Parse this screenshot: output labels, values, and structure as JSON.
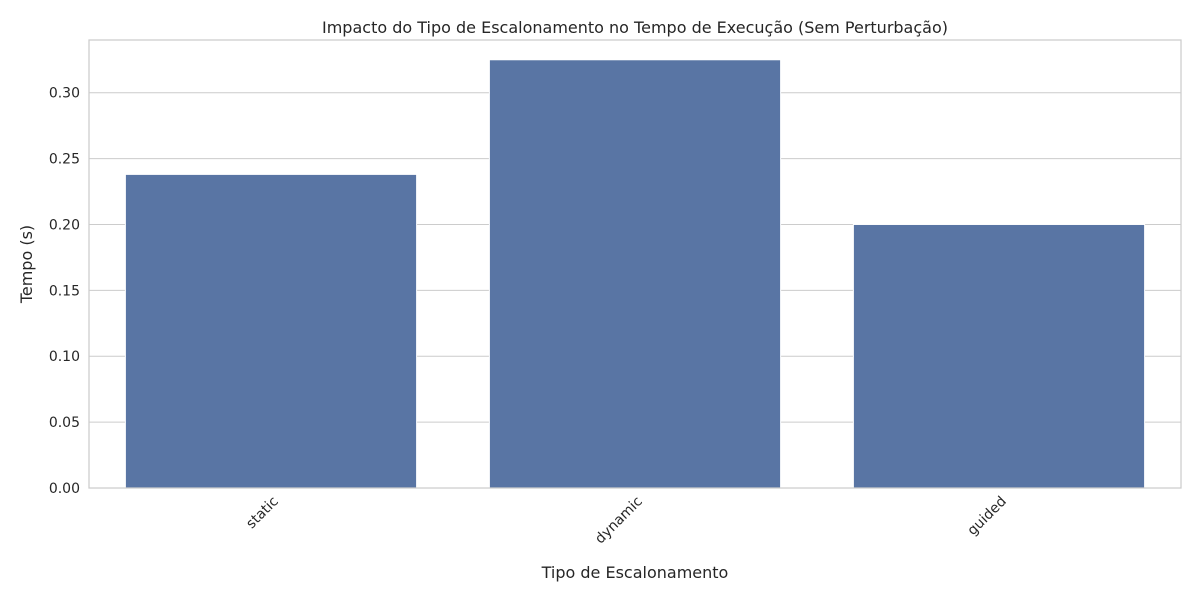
{
  "chart_data": {
    "type": "bar",
    "title": "Impacto do Tipo de Escalonamento no Tempo de Execução (Sem Perturbação)",
    "xlabel": "Tipo de Escalonamento",
    "ylabel": "Tempo (s)",
    "categories": [
      "static",
      "dynamic",
      "guided"
    ],
    "values": [
      0.238,
      0.325,
      0.2
    ],
    "ylim": [
      0,
      0.34
    ],
    "yticks": [
      0.0,
      0.05,
      0.1,
      0.15,
      0.2,
      0.25,
      0.3
    ],
    "ytick_labels": [
      "0.00",
      "0.05",
      "0.10",
      "0.15",
      "0.20",
      "0.25",
      "0.30"
    ],
    "grid": "horizontal",
    "bar_color": "#5975a4",
    "grid_color": "#cccccc",
    "spine_color": "#cccccc",
    "xtick_rotation_deg": 45
  }
}
